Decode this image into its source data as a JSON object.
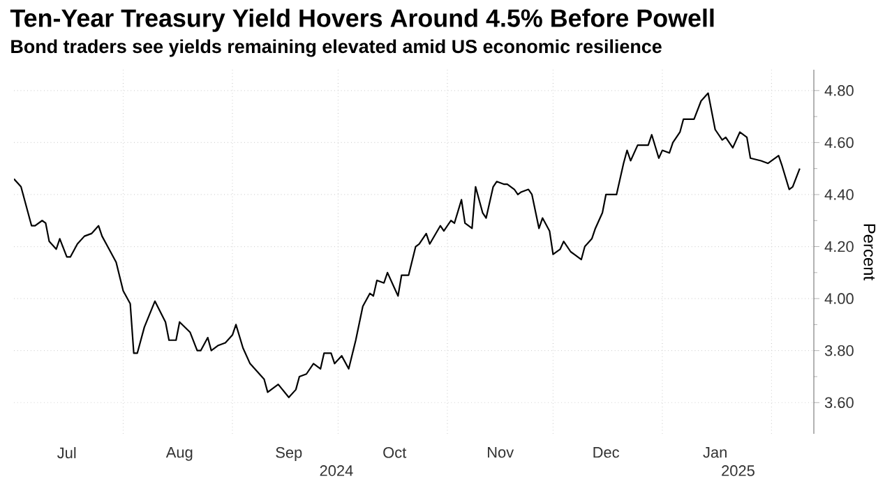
{
  "chart_data": {
    "type": "line",
    "title": "Ten-Year Treasury Yield Hovers Around 4.5% Before Powell",
    "subtitle": "Bond traders see yields remaining elevated amid US economic resilience",
    "ylabel": "Percent",
    "color": "#000000",
    "grid": true,
    "x": [
      "2024-07-01",
      "2024-07-03",
      "2024-07-06",
      "2024-07-07",
      "2024-07-09",
      "2024-07-10",
      "2024-07-11",
      "2024-07-13",
      "2024-07-14",
      "2024-07-16",
      "2024-07-17",
      "2024-07-19",
      "2024-07-21",
      "2024-07-23",
      "2024-07-25",
      "2024-07-26",
      "2024-07-28",
      "2024-07-30",
      "2024-08-01",
      "2024-08-03",
      "2024-08-04",
      "2024-08-05",
      "2024-08-07",
      "2024-08-10",
      "2024-08-13",
      "2024-08-14",
      "2024-08-16",
      "2024-08-17",
      "2024-08-20",
      "2024-08-22",
      "2024-08-23",
      "2024-08-25",
      "2024-08-26",
      "2024-08-28",
      "2024-08-30",
      "2024-09-01",
      "2024-09-02",
      "2024-09-04",
      "2024-09-06",
      "2024-09-08",
      "2024-09-10",
      "2024-09-11",
      "2024-09-14",
      "2024-09-17",
      "2024-09-19",
      "2024-09-20",
      "2024-09-22",
      "2024-09-24",
      "2024-09-26",
      "2024-09-27",
      "2024-09-29",
      "2024-09-30",
      "2024-10-02",
      "2024-10-04",
      "2024-10-06",
      "2024-10-08",
      "2024-10-10",
      "2024-10-11",
      "2024-10-12",
      "2024-10-14",
      "2024-10-15",
      "2024-10-17",
      "2024-10-18",
      "2024-10-19",
      "2024-10-21",
      "2024-10-23",
      "2024-10-24",
      "2024-10-26",
      "2024-10-27",
      "2024-10-30",
      "2024-10-31",
      "2024-11-02",
      "2024-11-03",
      "2024-11-05",
      "2024-11-06",
      "2024-11-08",
      "2024-11-09",
      "2024-11-11",
      "2024-11-12",
      "2024-11-14",
      "2024-11-15",
      "2024-11-17",
      "2024-11-18",
      "2024-11-20",
      "2024-11-21",
      "2024-11-22",
      "2024-11-24",
      "2024-11-25",
      "2024-11-27",
      "2024-11-28",
      "2024-11-30",
      "2024-12-01",
      "2024-12-03",
      "2024-12-04",
      "2024-12-06",
      "2024-12-07",
      "2024-12-09",
      "2024-12-10",
      "2024-12-12",
      "2024-12-13",
      "2024-12-15",
      "2024-12-16",
      "2024-12-19",
      "2024-12-21",
      "2024-12-22",
      "2024-12-23",
      "2024-12-25",
      "2024-12-28",
      "2024-12-29",
      "2024-12-31",
      "2025-01-01",
      "2025-01-03",
      "2025-01-04",
      "2025-01-06",
      "2025-01-07",
      "2025-01-10",
      "2025-01-12",
      "2025-01-14",
      "2025-01-16",
      "2025-01-18",
      "2025-01-19",
      "2025-01-21",
      "2025-01-23",
      "2025-01-25",
      "2025-01-26",
      "2025-01-29",
      "2025-01-31",
      "2025-02-03",
      "2025-02-04",
      "2025-02-06",
      "2025-02-07",
      "2025-02-09"
    ],
    "values": [
      4.46,
      4.43,
      4.28,
      4.28,
      4.3,
      4.29,
      4.22,
      4.19,
      4.23,
      4.16,
      4.16,
      4.21,
      4.24,
      4.25,
      4.28,
      4.24,
      4.19,
      4.14,
      4.03,
      3.98,
      3.79,
      3.79,
      3.89,
      3.99,
      3.91,
      3.84,
      3.84,
      3.91,
      3.87,
      3.8,
      3.8,
      3.85,
      3.8,
      3.82,
      3.83,
      3.86,
      3.9,
      3.81,
      3.75,
      3.72,
      3.69,
      3.64,
      3.67,
      3.62,
      3.65,
      3.7,
      3.71,
      3.75,
      3.73,
      3.79,
      3.79,
      3.75,
      3.78,
      3.73,
      3.84,
      3.97,
      4.02,
      4.01,
      4.07,
      4.06,
      4.1,
      4.04,
      4.01,
      4.09,
      4.09,
      4.2,
      4.21,
      4.25,
      4.21,
      4.28,
      4.26,
      4.3,
      4.29,
      4.38,
      4.29,
      4.27,
      4.43,
      4.33,
      4.31,
      4.43,
      4.45,
      4.44,
      4.44,
      4.42,
      4.4,
      4.41,
      4.42,
      4.4,
      4.27,
      4.31,
      4.26,
      4.17,
      4.19,
      4.22,
      4.18,
      4.17,
      4.15,
      4.2,
      4.23,
      4.27,
      4.33,
      4.4,
      4.4,
      4.52,
      4.57,
      4.53,
      4.59,
      4.59,
      4.63,
      4.54,
      4.57,
      4.56,
      4.6,
      4.64,
      4.69,
      4.69,
      4.76,
      4.79,
      4.65,
      4.61,
      4.62,
      4.58,
      4.64,
      4.62,
      4.54,
      4.53,
      4.52,
      4.55,
      4.51,
      4.42,
      4.43,
      4.5
    ],
    "xlim": [
      "2024-07-01",
      "2025-02-13"
    ],
    "xticks": [
      {
        "value": "2024-08-01",
        "label": null
      },
      {
        "value": "2024-09-01",
        "label": null
      },
      {
        "value": "2024-10-01",
        "label": null
      },
      {
        "value": "2024-11-01",
        "label": null
      },
      {
        "value": "2024-12-01",
        "label": null
      },
      {
        "value": "2025-01-01",
        "label": null
      },
      {
        "value": "2025-02-01",
        "label": null
      },
      {
        "value": "2024-07-16",
        "label": "Jul"
      },
      {
        "value": "2024-08-17",
        "label": "Aug"
      },
      {
        "value": "2024-09-17",
        "label": "Sep"
      },
      {
        "value": "2024-10-17",
        "label": "Oct"
      },
      {
        "value": "2024-11-16",
        "label": "Nov"
      },
      {
        "value": "2024-12-16",
        "label": "Dec"
      },
      {
        "value": "2025-01-16",
        "label": "Jan"
      }
    ],
    "annotations": [
      "2024",
      "2025"
    ],
    "ylim": [
      3.48,
      4.88
    ],
    "yticks": [
      {
        "value": 3.6,
        "label": "3.60"
      },
      {
        "value": 3.7,
        "label": null
      },
      {
        "value": 3.8,
        "label": "3.80"
      },
      {
        "value": 3.9,
        "label": null
      },
      {
        "value": 4.0,
        "label": "4.00"
      },
      {
        "value": 4.1,
        "label": null
      },
      {
        "value": 4.2,
        "label": "4.20"
      },
      {
        "value": 4.3,
        "label": null
      },
      {
        "value": 4.4,
        "label": "4.40"
      },
      {
        "value": 4.5,
        "label": null
      },
      {
        "value": 4.6,
        "label": "4.60"
      },
      {
        "value": 4.7,
        "label": null
      },
      {
        "value": 4.8,
        "label": "4.80"
      }
    ]
  }
}
